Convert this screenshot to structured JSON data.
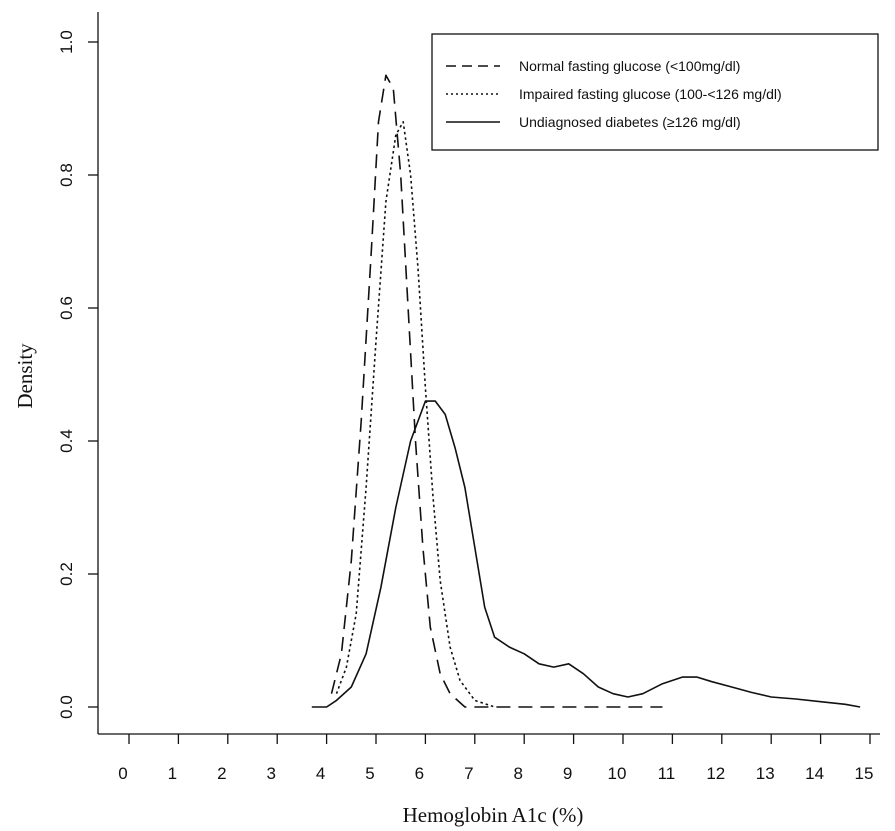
{
  "chart_data": {
    "type": "line",
    "title": "",
    "xlabel": "Hemoglobin A1c (%)",
    "ylabel": "Density",
    "xlim": [
      0,
      15
    ],
    "ylim": [
      0,
      1.0
    ],
    "x_ticks": [
      0,
      1,
      2,
      3,
      4,
      5,
      6,
      7,
      8,
      9,
      10,
      11,
      12,
      13,
      14,
      15
    ],
    "x_tick_labels": [
      "0",
      "1",
      "2",
      "3",
      "4",
      "5",
      "6",
      "7",
      "8",
      "9",
      "10",
      "11",
      "12",
      "13",
      "14",
      "15"
    ],
    "y_ticks": [
      0,
      0.2,
      0.4,
      0.6,
      0.8,
      1.0
    ],
    "y_tick_labels": [
      "0.0",
      "0.2",
      "0.4",
      "0.6",
      "0.8",
      "1.0"
    ],
    "grid": false,
    "legend_position": "top-right",
    "series": [
      {
        "name": "Normal fasting glucose (<100mg/dl)",
        "style": "dashed",
        "points": [
          [
            4.1,
            0.02
          ],
          [
            4.3,
            0.08
          ],
          [
            4.5,
            0.22
          ],
          [
            4.7,
            0.43
          ],
          [
            4.9,
            0.68
          ],
          [
            5.05,
            0.88
          ],
          [
            5.2,
            0.95
          ],
          [
            5.35,
            0.93
          ],
          [
            5.5,
            0.8
          ],
          [
            5.65,
            0.6
          ],
          [
            5.8,
            0.4
          ],
          [
            5.95,
            0.24
          ],
          [
            6.1,
            0.12
          ],
          [
            6.3,
            0.05
          ],
          [
            6.5,
            0.02
          ],
          [
            6.8,
            0.0
          ],
          [
            10.8,
            0.0
          ]
        ]
      },
      {
        "name": "Impaired fasting glucose (100-<126 mg/dl)",
        "style": "dotted",
        "points": [
          [
            4.2,
            0.02
          ],
          [
            4.4,
            0.06
          ],
          [
            4.6,
            0.14
          ],
          [
            4.8,
            0.33
          ],
          [
            5.0,
            0.55
          ],
          [
            5.2,
            0.76
          ],
          [
            5.4,
            0.86
          ],
          [
            5.55,
            0.88
          ],
          [
            5.7,
            0.8
          ],
          [
            5.85,
            0.66
          ],
          [
            6.0,
            0.48
          ],
          [
            6.15,
            0.32
          ],
          [
            6.3,
            0.19
          ],
          [
            6.5,
            0.09
          ],
          [
            6.7,
            0.04
          ],
          [
            7.0,
            0.01
          ],
          [
            7.4,
            0.0
          ]
        ]
      },
      {
        "name": "Undiagnosed diabetes (≥126 mg/dl)",
        "style": "solid",
        "points": [
          [
            3.7,
            0.0
          ],
          [
            4.0,
            0.0
          ],
          [
            4.2,
            0.01
          ],
          [
            4.5,
            0.03
          ],
          [
            4.8,
            0.08
          ],
          [
            5.1,
            0.18
          ],
          [
            5.4,
            0.3
          ],
          [
            5.7,
            0.4
          ],
          [
            6.0,
            0.46
          ],
          [
            6.2,
            0.46
          ],
          [
            6.4,
            0.44
          ],
          [
            6.6,
            0.39
          ],
          [
            6.8,
            0.33
          ],
          [
            7.0,
            0.24
          ],
          [
            7.2,
            0.15
          ],
          [
            7.4,
            0.105
          ],
          [
            7.7,
            0.09
          ],
          [
            8.0,
            0.08
          ],
          [
            8.3,
            0.065
          ],
          [
            8.6,
            0.06
          ],
          [
            8.9,
            0.065
          ],
          [
            9.2,
            0.05
          ],
          [
            9.5,
            0.03
          ],
          [
            9.8,
            0.02
          ],
          [
            10.1,
            0.015
          ],
          [
            10.4,
            0.02
          ],
          [
            10.8,
            0.035
          ],
          [
            11.2,
            0.045
          ],
          [
            11.5,
            0.045
          ],
          [
            11.8,
            0.038
          ],
          [
            12.2,
            0.03
          ],
          [
            12.6,
            0.022
          ],
          [
            13.0,
            0.015
          ],
          [
            13.5,
            0.012
          ],
          [
            14.0,
            0.008
          ],
          [
            14.5,
            0.004
          ],
          [
            14.8,
            0.0
          ]
        ]
      }
    ]
  }
}
